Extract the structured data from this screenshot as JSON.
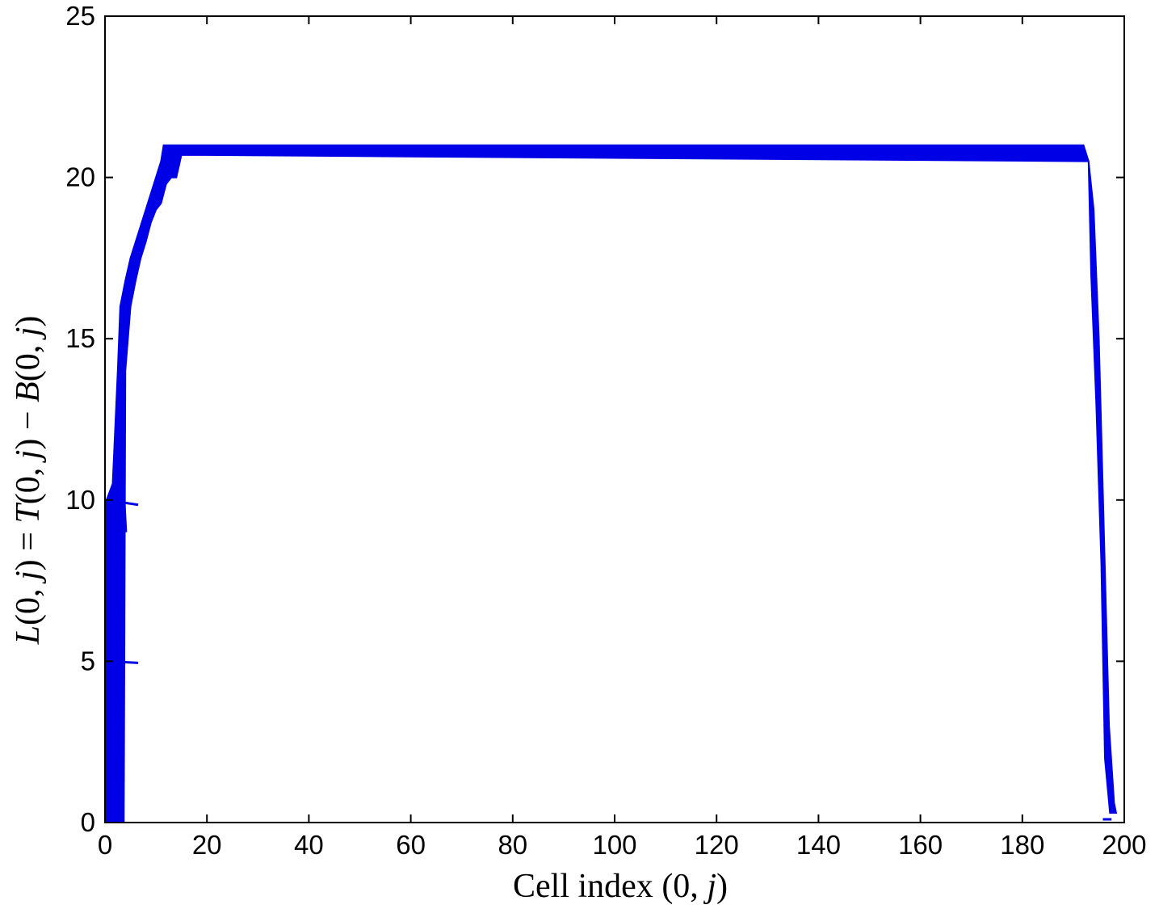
{
  "chart_data": {
    "type": "area",
    "xlabel_parts": [
      "Cell index ",
      "(0, ",
      "j",
      ")"
    ],
    "ylabel_parts": [
      "L",
      "(0, ",
      "j",
      ") = ",
      "T",
      "(0, ",
      "j",
      ") − ",
      "B",
      "(0, ",
      "j",
      ")"
    ],
    "xlim": [
      0,
      200
    ],
    "ylim": [
      0,
      25
    ],
    "x_ticks": [
      0,
      20,
      40,
      60,
      80,
      100,
      120,
      140,
      160,
      180,
      200
    ],
    "y_ticks": [
      0,
      5,
      10,
      15,
      20,
      25
    ],
    "grid": false,
    "colors": {
      "series": "#0000e6",
      "axis": "#000000"
    },
    "series": [
      {
        "upper": [
          [
            0.3,
            10
          ],
          [
            1.5,
            10.5
          ],
          [
            2.5,
            14
          ],
          [
            3,
            16
          ],
          [
            4,
            16.8
          ],
          [
            5,
            17.5
          ],
          [
            6,
            18
          ],
          [
            7,
            18.5
          ],
          [
            8,
            19
          ],
          [
            9,
            19.5
          ],
          [
            10,
            20
          ],
          [
            11,
            20.5
          ],
          [
            11.5,
            21
          ],
          [
            192,
            21
          ],
          [
            193,
            20.5
          ],
          [
            194,
            19
          ],
          [
            195,
            15
          ],
          [
            196,
            9
          ],
          [
            197,
            3
          ],
          [
            198,
            0.6
          ]
        ],
        "lower": [
          [
            198.4,
            0.3
          ],
          [
            197.2,
            0.3
          ],
          [
            196.2,
            2
          ],
          [
            195.5,
            8
          ],
          [
            194.5,
            13
          ],
          [
            193.5,
            17
          ],
          [
            193,
            20.5
          ],
          [
            15,
            20.7
          ],
          [
            14,
            20
          ],
          [
            13,
            20
          ],
          [
            12,
            19.8
          ],
          [
            11,
            19.2
          ],
          [
            10,
            19
          ],
          [
            9,
            18.6
          ],
          [
            8,
            18
          ],
          [
            7,
            17.5
          ],
          [
            6,
            16.8
          ],
          [
            5,
            16
          ],
          [
            4,
            14
          ],
          [
            3.7,
            0
          ],
          [
            0.3,
            0
          ]
        ]
      }
    ],
    "segments": [
      {
        "x": [
          0.3,
          6.5
        ],
        "y": [
          10,
          9.85
        ]
      },
      {
        "x": [
          0.3,
          6.5
        ],
        "y": [
          5,
          4.95
        ]
      },
      {
        "x": [
          3.6,
          4.1
        ],
        "y": [
          10.5,
          9
        ]
      },
      {
        "x": [
          195.8,
          197.5
        ],
        "y": [
          0.1,
          0.1
        ]
      }
    ]
  }
}
